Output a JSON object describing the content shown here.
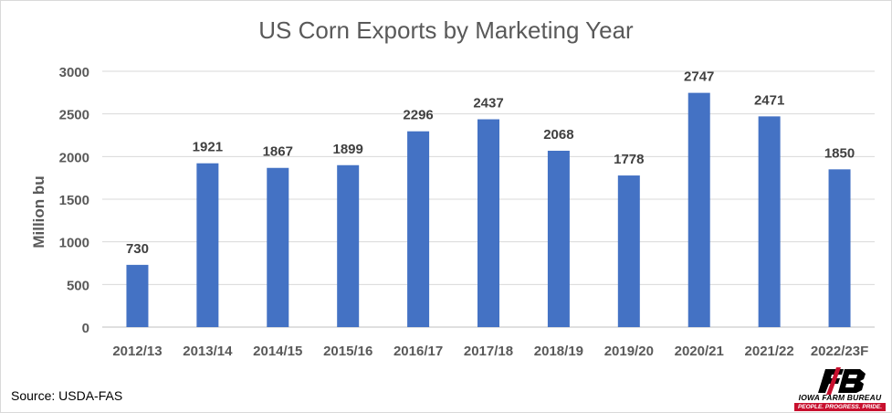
{
  "chart_data": {
    "type": "bar",
    "title": "US Corn Exports by Marketing Year",
    "ylabel": "Million bu",
    "xlabel": "",
    "categories": [
      "2012/13",
      "2013/14",
      "2014/15",
      "2015/16",
      "2016/17",
      "2017/18",
      "2018/19",
      "2019/20",
      "2020/21",
      "2021/22",
      "2022/23F"
    ],
    "values": [
      730,
      1921,
      1867,
      1899,
      2296,
      2437,
      2068,
      1778,
      2747,
      2471,
      1850
    ],
    "ylim": [
      0,
      3000
    ],
    "yticks": [
      0,
      500,
      1000,
      1500,
      2000,
      2500,
      3000
    ],
    "grid": true,
    "legend": "none",
    "bar_color": "#4472c4",
    "data_labels": true
  },
  "source": "Source: USDA-FAS",
  "logo": {
    "name": "IOWA FARM BUREAU",
    "tagline": "PEOPLE. PROGRESS. PRIDE.",
    "brand_color": "#c8102e"
  }
}
